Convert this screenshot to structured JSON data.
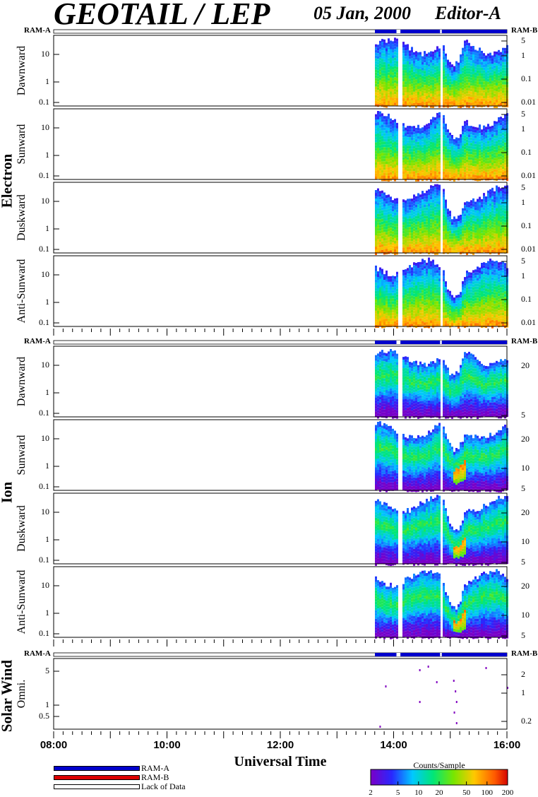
{
  "header": {
    "title": "GEOTAIL / LEP",
    "date": "05 Jan, 2000",
    "editor": "Editor-A"
  },
  "chart_data": {
    "type": "heatmap",
    "xaxis": {
      "title": "Universal Time",
      "ticks": [
        "08:00",
        "10:00",
        "12:00",
        "14:00",
        "16:00"
      ],
      "range_hours": [
        8,
        16
      ]
    },
    "ram": {
      "left": "RAM-A",
      "right": "RAM-B"
    },
    "data_coverage_hours": [
      13.67,
      16.0
    ],
    "data_gaps_hours": [
      [
        14.05,
        14.12
      ],
      [
        14.82,
        14.85
      ]
    ],
    "groups": [
      {
        "name": "Electron",
        "panels": [
          {
            "label": "Dawnward",
            "left_ticks": [
              "10",
              "1",
              "0.1"
            ],
            "right_ticks": [
              "5",
              "1",
              "0.1",
              "0.01"
            ]
          },
          {
            "label": "Sunward",
            "left_ticks": [
              "10",
              "1",
              "0.1"
            ],
            "right_ticks": [
              "5",
              "1",
              "0.1",
              "0.01"
            ]
          },
          {
            "label": "Duskward",
            "left_ticks": [
              "10",
              "1",
              "0.1"
            ],
            "right_ticks": [
              "5",
              "1",
              "0.1",
              "0.01"
            ]
          },
          {
            "label": "Anti-Sunward",
            "left_ticks": [
              "10",
              "1",
              "0.1"
            ],
            "right_ticks": [
              "5",
              "1",
              "0.1",
              "0.01"
            ]
          }
        ]
      },
      {
        "name": "Ion",
        "panels": [
          {
            "label": "Dawnward",
            "left_ticks": [
              "10",
              "1",
              "0.1"
            ],
            "right_ticks": [
              "20",
              "5"
            ]
          },
          {
            "label": "Sunward",
            "left_ticks": [
              "10",
              "1",
              "0.1"
            ],
            "right_ticks": [
              "20",
              "10",
              "5"
            ]
          },
          {
            "label": "Duskward",
            "left_ticks": [
              "10",
              "1",
              "0.1"
            ],
            "right_ticks": [
              "20",
              "10",
              "5"
            ]
          },
          {
            "label": "Anti-Sunward",
            "left_ticks": [
              "10",
              "1",
              "0.1"
            ],
            "right_ticks": [
              "20",
              "10",
              "5"
            ]
          }
        ]
      },
      {
        "name": "Solar Wind",
        "panels": [
          {
            "label": "Omni.",
            "left_ticks": [
              "5",
              "1",
              "0.5"
            ],
            "right_ticks": [
              "2",
              "1",
              "0.2"
            ]
          }
        ]
      }
    ],
    "legend": [
      {
        "label": "RAM-A",
        "color": "#0000cc"
      },
      {
        "label": "RAM-B",
        "color": "#dd0000"
      },
      {
        "label": "Lack of Data",
        "color": "#ffffff"
      }
    ],
    "colorbar": {
      "title": "Counts/Sample",
      "ticks": [
        "2",
        "5",
        "10",
        "20",
        "50",
        "100",
        "200"
      ],
      "range": [
        2,
        200
      ],
      "scale": "log"
    }
  }
}
